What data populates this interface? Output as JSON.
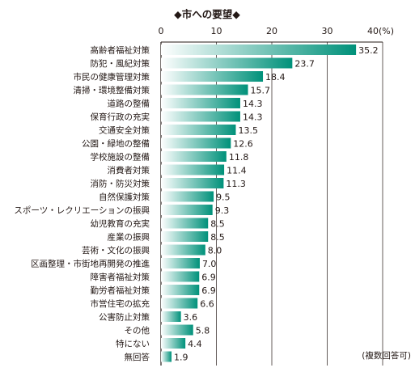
{
  "chart_data": {
    "type": "bar",
    "orientation": "horizontal",
    "title": "◆市への要望◆",
    "note": "(複数回答可)",
    "xlim": [
      0,
      40
    ],
    "ticks": [
      "0",
      "10",
      "20",
      "30",
      "40(%)"
    ],
    "grid": true,
    "categories": [
      "高齢者福祉対策",
      "防犯・風紀対策",
      "市民の健康管理対策",
      "清掃・環境整備対策",
      "道路の整備",
      "保育行政の充実",
      "交通安全対策",
      "公園・緑地の整備",
      "学校施設の整備",
      "消費者対策",
      "消防・防災対策",
      "自然保護対策",
      "スポーツ・レクリエーションの振興",
      "幼児教育の充実",
      "産業の振興",
      "芸術・文化の振興",
      "区画整理・市街地再開発の推進",
      "障害者福祉対策",
      "勤労者福祉対策",
      "市営住宅の拡充",
      "公害防止対策",
      "その他",
      "特にない",
      "無回答"
    ],
    "values": [
      35.2,
      23.7,
      18.4,
      15.7,
      14.3,
      14.3,
      13.5,
      12.6,
      11.8,
      11.4,
      11.3,
      9.5,
      9.3,
      8.5,
      8.5,
      8.0,
      7.0,
      6.9,
      6.9,
      6.6,
      3.6,
      5.8,
      4.4,
      1.9
    ],
    "value_labels": [
      "35.2",
      "23.7",
      "18.4",
      "15.7",
      "14.3",
      "14.3",
      "13.5",
      "12.6",
      "11.8",
      "11.4",
      "11.3",
      "9.5",
      "9.3",
      "8.5",
      "8.5",
      "8.0",
      "7.0",
      "6.9",
      "6.9",
      "6.6",
      "3.6",
      "5.8",
      "4.4",
      "1.9"
    ],
    "colors": {
      "bar_dark": "#00917a",
      "bar_light": "#ffffff",
      "axis": "#231815",
      "grid": "#231815"
    }
  }
}
